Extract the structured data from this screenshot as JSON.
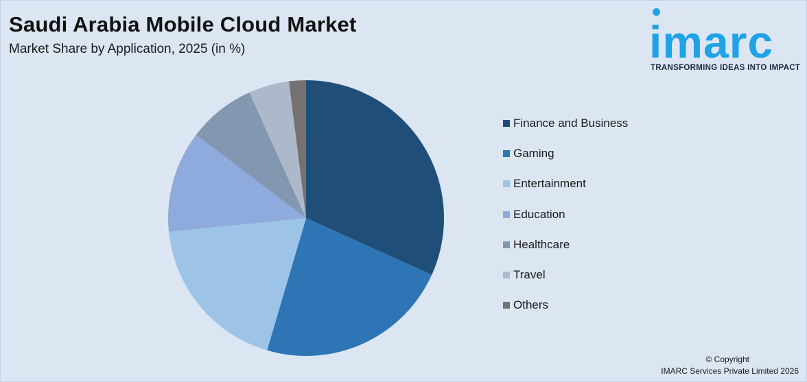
{
  "header": {
    "title": "Saudi Arabia Mobile Cloud Market",
    "subtitle": "Market Share by Application, 2025 (in %)"
  },
  "logo": {
    "word": "imarc",
    "tagline": "TRANSFORMING IDEAS INTO IMPACT",
    "color": "#1fa2e6"
  },
  "chart_data": {
    "type": "pie",
    "title": "Saudi Arabia Mobile Cloud Market",
    "subtitle": "Market Share by Application, 2025 (in %)",
    "legend_position": "right",
    "start_angle_deg": 0,
    "direction": "clockwise",
    "slices": [
      {
        "label": "Finance and Business",
        "value": 32,
        "color": "#1f4e79"
      },
      {
        "label": "Gaming",
        "value": 23,
        "color": "#2e75b6"
      },
      {
        "label": "Entertainment",
        "value": 19,
        "color": "#9dc3e6"
      },
      {
        "label": "Education",
        "value": 12,
        "color": "#8faadc"
      },
      {
        "label": "Healthcare",
        "value": 8,
        "color": "#8497b0"
      },
      {
        "label": "Travel",
        "value": 4.8,
        "color": "#adb9ca"
      },
      {
        "label": "Others",
        "value": 2,
        "color": "#767171"
      }
    ]
  },
  "footer": {
    "copyright_line1": "© Copyright",
    "copyright_line2": "IMARC Services Private Limited 2026"
  }
}
